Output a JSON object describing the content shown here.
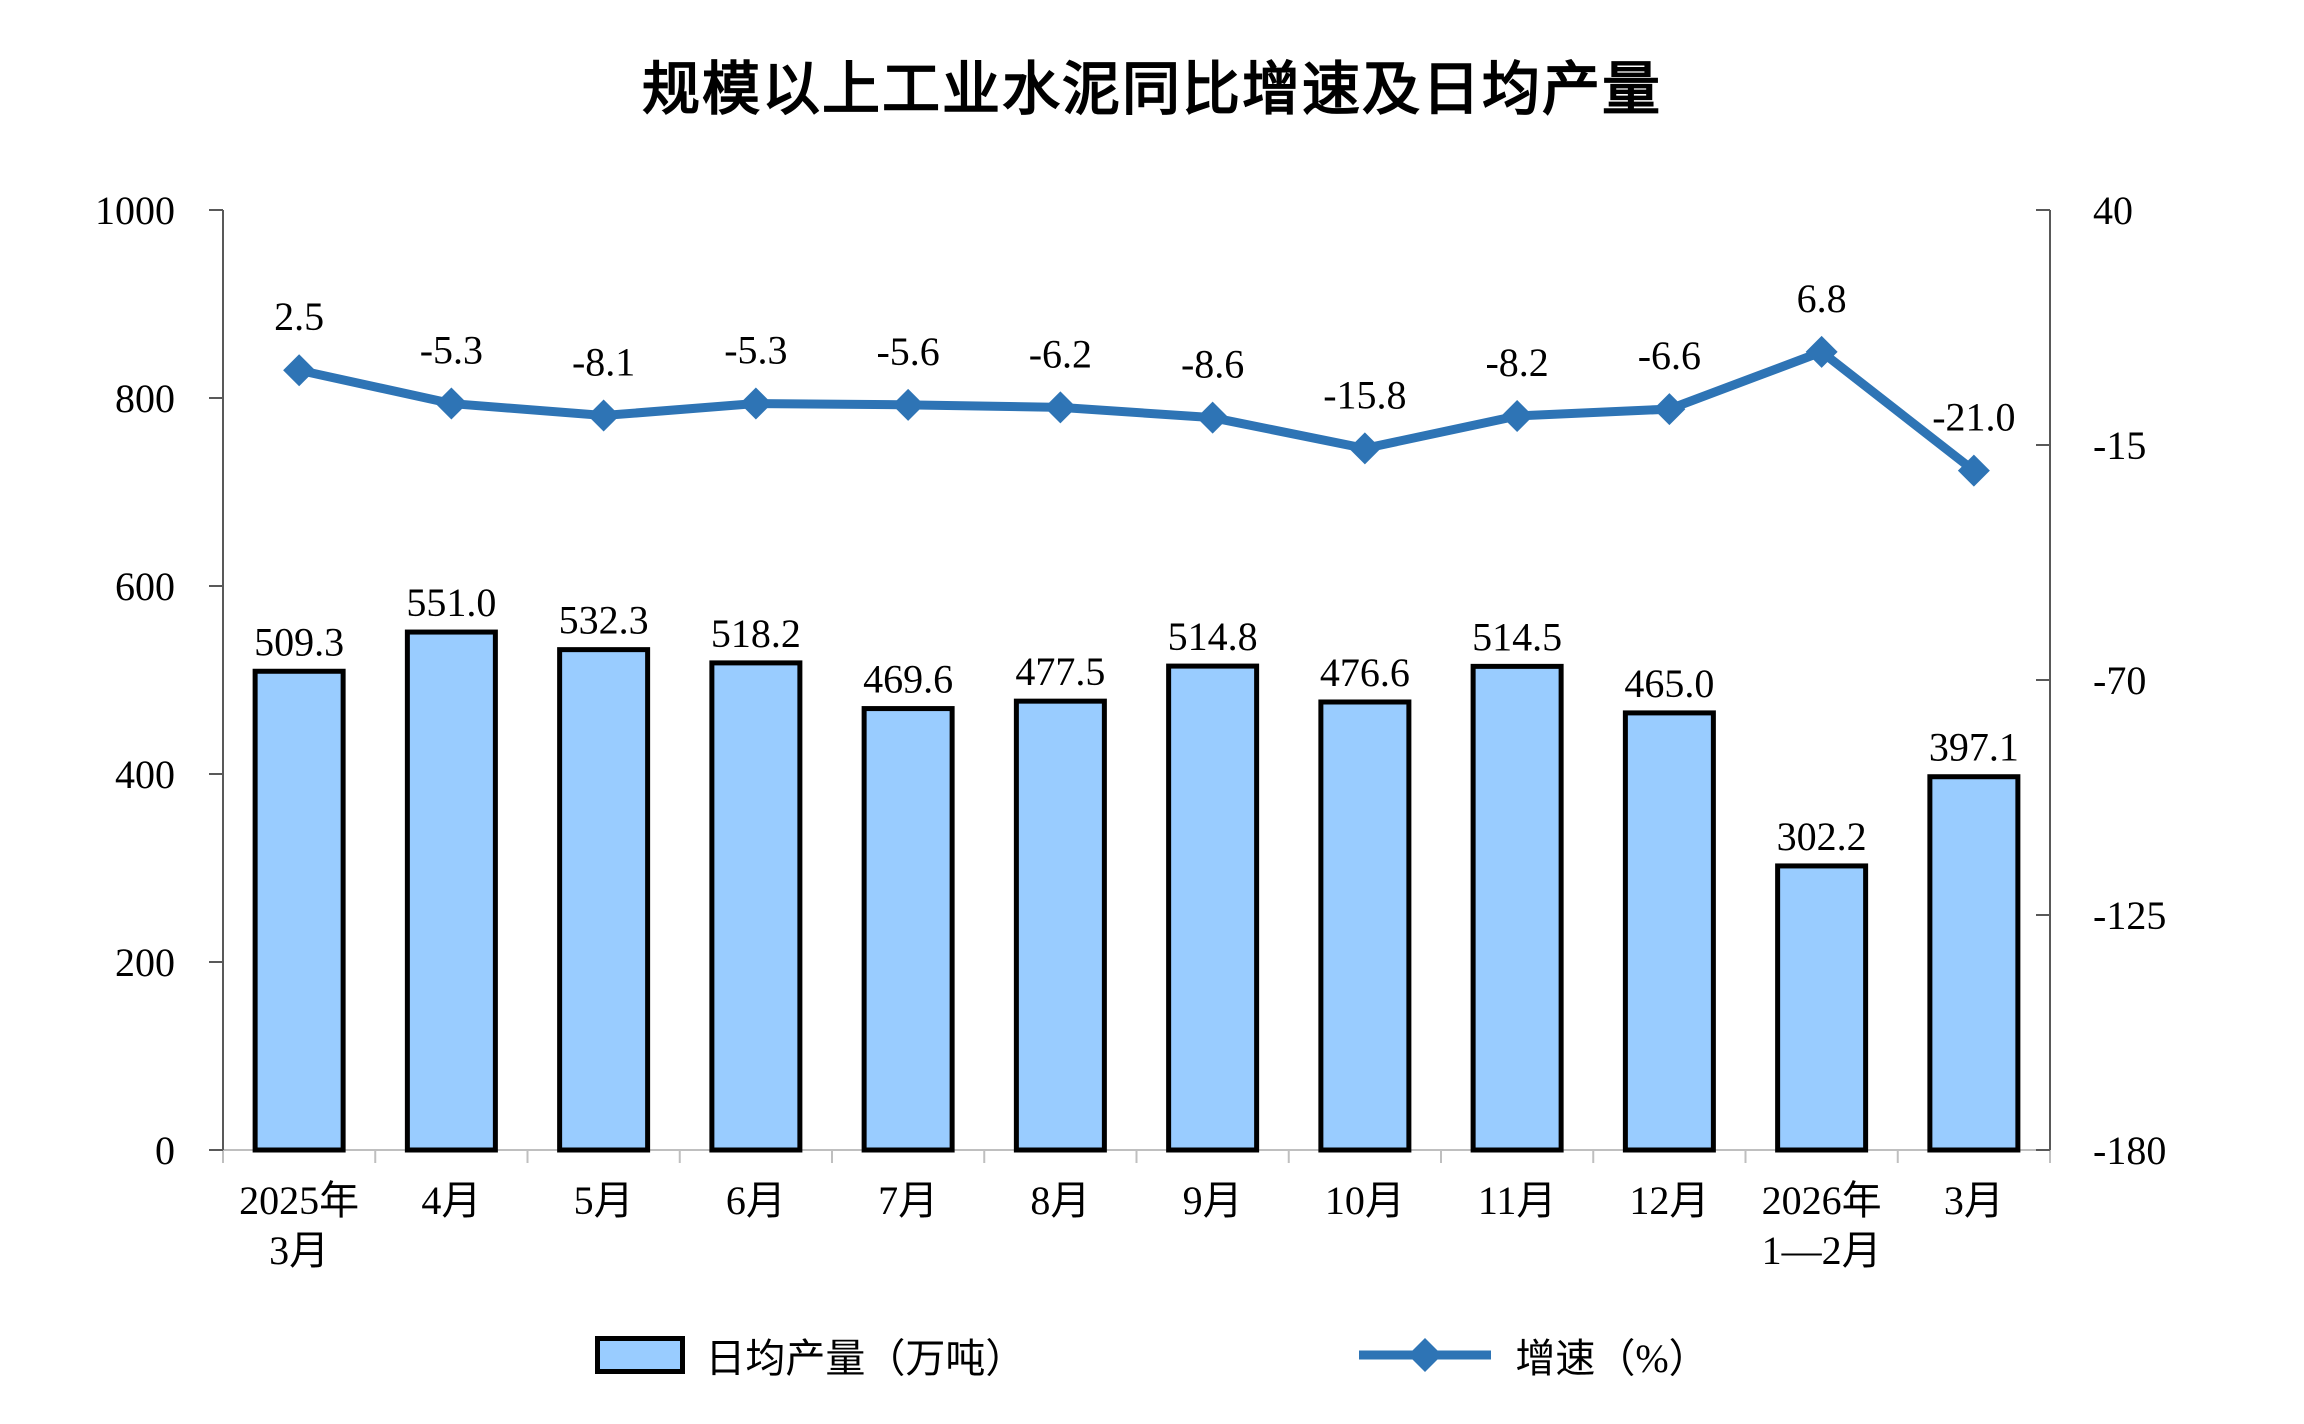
{
  "title": "规模以上工业水泥同比增速及日均产量",
  "legend": {
    "bar_label": "日均产量（万吨）",
    "line_label": "增速（%）"
  },
  "chart_data": {
    "type": "bar+line",
    "title": "规模以上工业水泥同比增速及日均产量",
    "categories": [
      "2025年\n3月",
      "4月",
      "5月",
      "6月",
      "7月",
      "8月",
      "9月",
      "10月",
      "11月",
      "12月",
      "2026年\n1—2月",
      "3月"
    ],
    "series": [
      {
        "name": "日均产量（万吨）",
        "type": "bar",
        "axis": "left",
        "values": [
          509.3,
          551.0,
          532.3,
          518.2,
          469.6,
          477.5,
          514.8,
          476.6,
          514.5,
          465.0,
          302.2,
          397.1
        ]
      },
      {
        "name": "增速（%）",
        "type": "line",
        "axis": "right",
        "values": [
          2.5,
          -5.3,
          -8.1,
          -5.3,
          -5.6,
          -6.2,
          -8.6,
          -15.8,
          -8.2,
          -6.6,
          6.8,
          -21.0
        ]
      }
    ],
    "left_axis": {
      "min": 0,
      "max": 1000,
      "ticks": [
        0,
        200,
        400,
        600,
        800,
        1000
      ]
    },
    "right_axis": {
      "min": -180,
      "max": 40,
      "ticks": [
        -180,
        -125,
        -70,
        -15,
        40
      ]
    },
    "grid": false,
    "legend_position": "bottom",
    "colors": {
      "bar_fill": "#99CCFF",
      "bar_border": "#000000",
      "line": "#2E74B5",
      "y_axis": "#595959",
      "x_axis": "#BFBFBF",
      "text": "#000000"
    }
  }
}
